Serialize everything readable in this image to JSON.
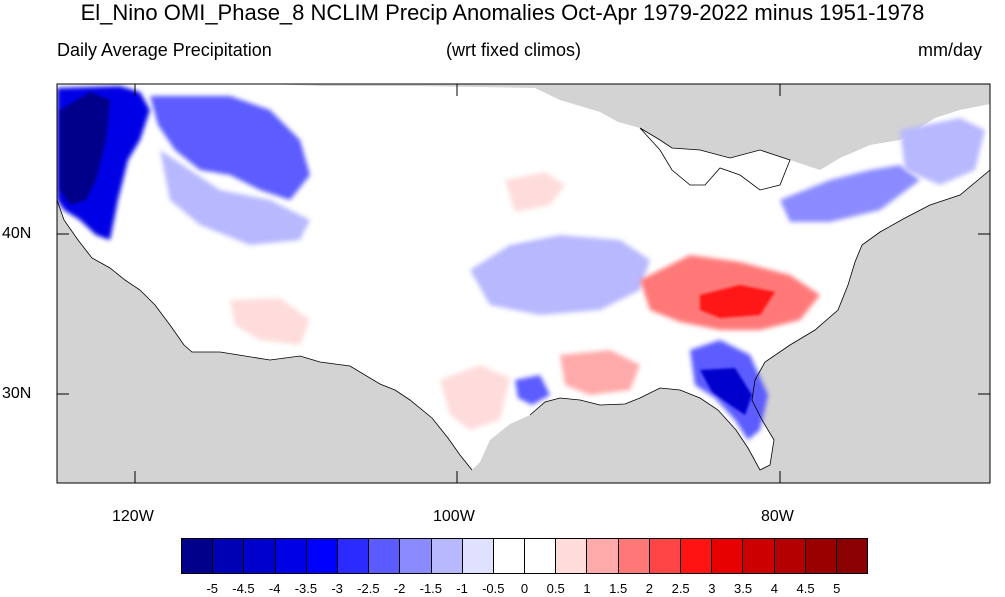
{
  "header": {
    "title": "El_Nino OMI_Phase_8 NCLIM Precip Anomalies Oct-Apr 1979-2022 minus 1951-1978",
    "left": "Daily Average Precipitation",
    "center": "(wrt fixed climos)",
    "right": "mm/day"
  },
  "map": {
    "lat_ticks": [
      "40N",
      "30N"
    ],
    "lon_ticks": [
      "120W",
      "100W",
      "80W"
    ],
    "land_color": "#d3d3d3"
  },
  "colorbar": {
    "colors": [
      "#00008b",
      "#0000b4",
      "#0000cd",
      "#0000e6",
      "#0000ff",
      "#2b2bff",
      "#5b5bff",
      "#8b8bff",
      "#b8b8ff",
      "#e0e0ff",
      "#ffffff",
      "#ffffff",
      "#ffdcdc",
      "#ffaaaa",
      "#ff7878",
      "#ff4646",
      "#ff1414",
      "#e60000",
      "#cd0000",
      "#b40000",
      "#9b0000",
      "#8b0000"
    ],
    "labels": [
      "-5",
      "-4.5",
      "-4",
      "-3.5",
      "-3",
      "-2.5",
      "-2",
      "-1.5",
      "-1",
      "-0.5",
      "0",
      "0.5",
      "1",
      "1.5",
      "2",
      "2.5",
      "3",
      "3.5",
      "4",
      "4.5",
      "5"
    ]
  }
}
